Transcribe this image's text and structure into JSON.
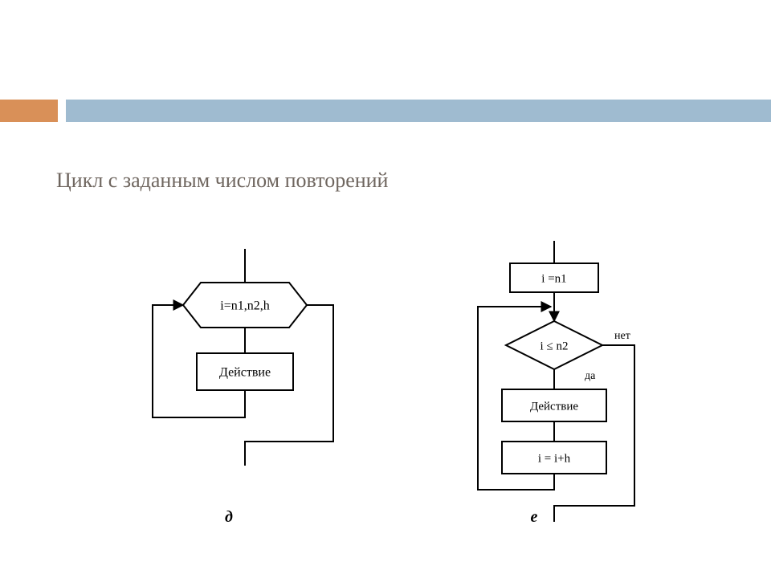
{
  "header": {
    "orange_color": "#d99058",
    "blue_color": "#9fbbd0",
    "orange_width": 72,
    "gap": 10,
    "height": 28
  },
  "title": {
    "text": "Цикл с заданным числом повторений",
    "color": "#6f665f",
    "fontsize": 26
  },
  "diagram": {
    "stroke": "#000000",
    "stroke_width": 2,
    "node_font": 16,
    "small_font": 15,
    "left": {
      "label": "д",
      "hex_text": "i=n1,n2,h",
      "action_text": "Действие"
    },
    "right": {
      "label": "е",
      "init_text": "i =n1",
      "cond_text": "i ≤ n2",
      "yes_text": "да",
      "no_text": "нет",
      "action_text": "Действие",
      "incr_text": "i = i+h"
    }
  }
}
